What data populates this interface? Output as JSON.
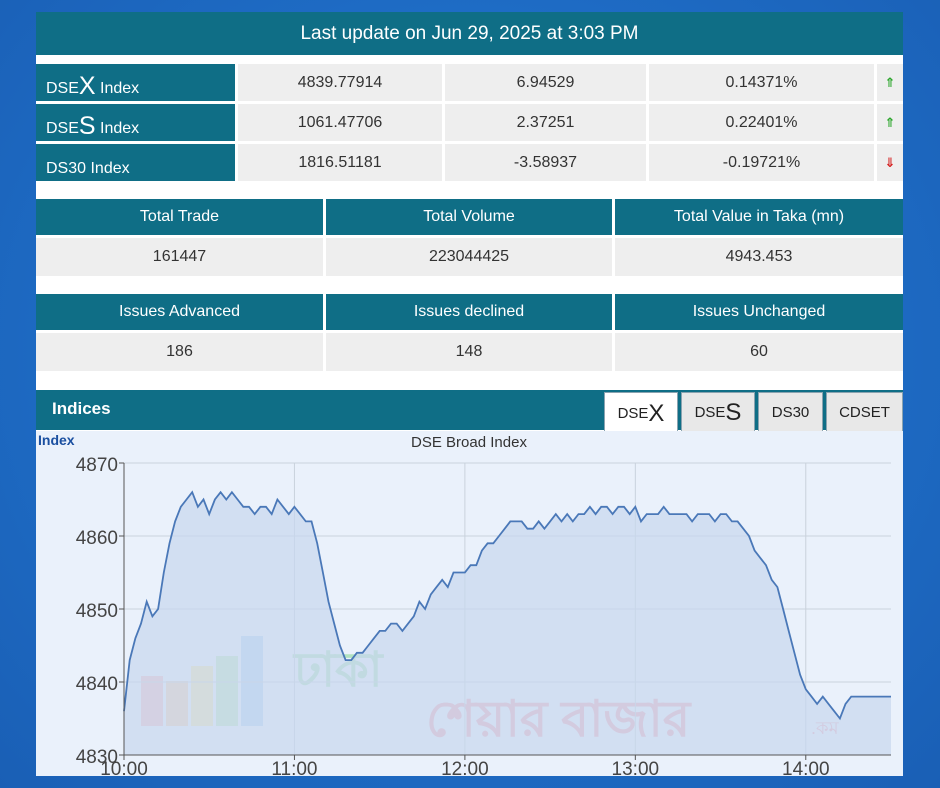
{
  "update": "Last update on Jun 29, 2025 at 3:03 PM",
  "indices": [
    {
      "prefix": "DSE",
      "big": "X",
      "suffix": " Index",
      "value": "4839.77914",
      "change": "6.94529",
      "pct": "0.14371%",
      "direction": "up"
    },
    {
      "prefix": "DSE",
      "big": "S",
      "suffix": " Index",
      "value": "1061.47706",
      "change": "2.37251",
      "pct": "0.22401%",
      "direction": "up"
    },
    {
      "prefix": "DS30",
      "big": "",
      "suffix": " Index",
      "value": "1816.51181",
      "change": "-3.58937",
      "pct": "-0.19721%",
      "direction": "down"
    }
  ],
  "arrows": {
    "up": "⇑",
    "down": "⇓",
    "up_color": "#2aa52a",
    "down_color": "#d42020"
  },
  "totals": {
    "trade_label": "Total Trade",
    "trade_value": "161447",
    "volume_label": "Total Volume",
    "volume_value": "223044425",
    "value_label": "Total Value in Taka (mn)",
    "value_value": "4943.453"
  },
  "issues": {
    "advanced_label": "Issues Advanced",
    "advanced_value": "186",
    "declined_label": "Issues declined",
    "declined_value": "148",
    "unchanged_label": "Issues Unchanged",
    "unchanged_value": "60"
  },
  "indices_title": "Indices",
  "tabs": [
    {
      "prefix": "DSE",
      "big": "X",
      "active": true
    },
    {
      "prefix": "DSE",
      "big": "S",
      "active": false
    },
    {
      "prefix": "DS30",
      "big": "",
      "active": false
    },
    {
      "prefix": "CDSET",
      "big": "",
      "active": false
    }
  ],
  "watermark": {
    "line1": "ঢাকা",
    "line2": "শেয়ার বাজার",
    "suffix": ".কম"
  },
  "chart_data": {
    "type": "area",
    "title": "DSE Broad Index",
    "ylabel": "Index",
    "xlabel": "",
    "ylim": [
      4830,
      4870
    ],
    "yticks": [
      4830,
      4840,
      4850,
      4860,
      4870
    ],
    "xlim": [
      "10:00",
      "14:30"
    ],
    "xticks": [
      "10:00",
      "11:00",
      "12:00",
      "13:00",
      "14:00"
    ],
    "line_color": "#4a78b8",
    "fill_color": "#c8d7ee",
    "series": [
      {
        "x": [
          "10:00",
          "10:02",
          "10:04",
          "10:06",
          "10:08",
          "10:10",
          "10:12",
          "10:14",
          "10:16",
          "10:18",
          "10:20",
          "10:22",
          "10:24",
          "10:26",
          "10:28",
          "10:30",
          "10:32",
          "10:34",
          "10:36",
          "10:38",
          "10:40",
          "10:42",
          "10:44",
          "10:46",
          "10:48",
          "10:50",
          "10:52",
          "10:54",
          "10:56",
          "10:58",
          "11:00",
          "11:02",
          "11:04",
          "11:06",
          "11:08",
          "11:10",
          "11:12",
          "11:14",
          "11:16",
          "11:18",
          "11:20",
          "11:22",
          "11:24",
          "11:26",
          "11:28",
          "11:30",
          "11:32",
          "11:34",
          "11:36",
          "11:38",
          "11:40",
          "11:42",
          "11:44",
          "11:46",
          "11:48",
          "11:50",
          "11:52",
          "11:54",
          "11:56",
          "11:58",
          "12:00",
          "12:02",
          "12:04",
          "12:06",
          "12:08",
          "12:10",
          "12:12",
          "12:14",
          "12:16",
          "12:18",
          "12:20",
          "12:22",
          "12:24",
          "12:26",
          "12:28",
          "12:30",
          "12:32",
          "12:34",
          "12:36",
          "12:38",
          "12:40",
          "12:42",
          "12:44",
          "12:46",
          "12:48",
          "12:50",
          "12:52",
          "12:54",
          "12:56",
          "12:58",
          "13:00",
          "13:02",
          "13:04",
          "13:06",
          "13:08",
          "13:10",
          "13:12",
          "13:14",
          "13:16",
          "13:18",
          "13:20",
          "13:22",
          "13:24",
          "13:26",
          "13:28",
          "13:30",
          "13:32",
          "13:34",
          "13:36",
          "13:38",
          "13:40",
          "13:42",
          "13:44",
          "13:46",
          "13:48",
          "13:50",
          "13:52",
          "13:54",
          "13:56",
          "13:58",
          "14:00",
          "14:02",
          "14:04",
          "14:06",
          "14:08",
          "14:10",
          "14:12",
          "14:14",
          "14:16",
          "14:18",
          "14:20",
          "14:22",
          "14:24",
          "14:26",
          "14:28",
          "14:30"
        ],
        "values": [
          4836,
          4843,
          4846,
          4848,
          4851,
          4849,
          4850,
          4855,
          4859,
          4862,
          4864,
          4865,
          4866,
          4864,
          4865,
          4863,
          4865,
          4866,
          4865,
          4866,
          4865,
          4864,
          4864,
          4863,
          4864,
          4864,
          4863,
          4865,
          4864,
          4863,
          4864,
          4863,
          4862,
          4862,
          4859,
          4855,
          4851,
          4848,
          4845,
          4843,
          4843,
          4844,
          4844,
          4845,
          4846,
          4847,
          4847,
          4848,
          4848,
          4847,
          4848,
          4849,
          4851,
          4850,
          4852,
          4853,
          4854,
          4853,
          4855,
          4855,
          4855,
          4856,
          4856,
          4858,
          4859,
          4859,
          4860,
          4861,
          4862,
          4862,
          4862,
          4861,
          4861,
          4862,
          4861,
          4862,
          4863,
          4862,
          4863,
          4862,
          4863,
          4863,
          4864,
          4863,
          4864,
          4864,
          4863,
          4864,
          4864,
          4863,
          4864,
          4862,
          4863,
          4863,
          4863,
          4864,
          4863,
          4863,
          4863,
          4863,
          4862,
          4863,
          4863,
          4863,
          4862,
          4863,
          4863,
          4862,
          4862,
          4861,
          4860,
          4858,
          4857,
          4856,
          4854,
          4853,
          4850,
          4847,
          4844,
          4841,
          4839,
          4838,
          4837,
          4838,
          4837,
          4836,
          4835,
          4837,
          4838,
          4838,
          4838,
          4838,
          4838,
          4838,
          4838,
          4838
        ]
      }
    ]
  }
}
